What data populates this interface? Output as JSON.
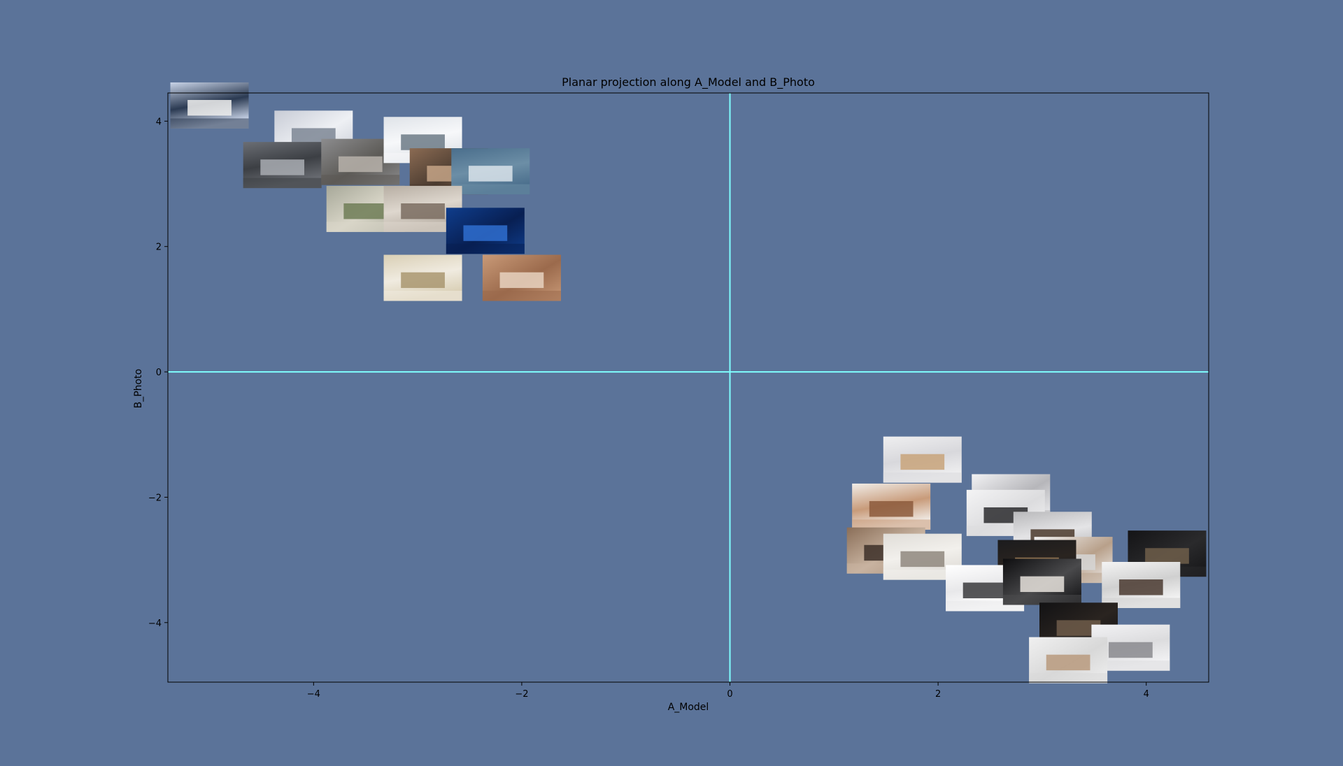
{
  "chart_data": {
    "type": "scatter",
    "title": "Planar projection along A_Model and B_Photo",
    "xlabel": "A_Model",
    "ylabel": "B_Photo",
    "xlim": [
      -5.4,
      4.6
    ],
    "ylim": [
      -4.95,
      4.45
    ],
    "xticks": [
      -4,
      -2,
      0,
      2,
      4
    ],
    "yticks": [
      -4,
      -2,
      0,
      2,
      4
    ],
    "tick_labels_x": [
      "−4",
      "−2",
      "0",
      "2",
      "4"
    ],
    "tick_labels_y": [
      "−4",
      "−2",
      "0",
      "2",
      "4"
    ],
    "grid": false,
    "reference_lines": {
      "x": 0,
      "y": 0,
      "color": "#7fffff"
    },
    "colors": {
      "background": "#5b7399",
      "axes_face": "#5b7399",
      "frame": "#000000"
    },
    "points": [
      {
        "x": -5.0,
        "y": 4.25,
        "thumb": [
          "#c9d4e8",
          "#f0f0ee",
          "#2b3a52"
        ]
      },
      {
        "x": -4.0,
        "y": 3.8,
        "thumb": [
          "#c8ccd6",
          "#7d8694",
          "#eef0f4"
        ]
      },
      {
        "x": -4.3,
        "y": 3.3,
        "thumb": [
          "#6b6e74",
          "#a9adb3",
          "#3c3f44"
        ]
      },
      {
        "x": -3.55,
        "y": 3.35,
        "thumb": [
          "#8c8c8e",
          "#b7b2aa",
          "#5c5a56"
        ]
      },
      {
        "x": -2.95,
        "y": 3.7,
        "thumb": [
          "#dfe3e8",
          "#6c7a86",
          "#f7f8fa"
        ]
      },
      {
        "x": -2.7,
        "y": 3.2,
        "thumb": [
          "#8b6b53",
          "#c6a587",
          "#4a3b30"
        ]
      },
      {
        "x": -2.3,
        "y": 3.2,
        "thumb": [
          "#4a6e8c",
          "#d9e3ea",
          "#6c8ea6"
        ]
      },
      {
        "x": -3.5,
        "y": 2.6,
        "thumb": [
          "#a7a899",
          "#6f7d56",
          "#d9d6c8"
        ]
      },
      {
        "x": -2.95,
        "y": 2.6,
        "thumb": [
          "#b7aea3",
          "#7a6c60",
          "#ded7ce"
        ]
      },
      {
        "x": -2.35,
        "y": 2.25,
        "thumb": [
          "#0f3d8c",
          "#2f6fd0",
          "#081f52"
        ]
      },
      {
        "x": -2.95,
        "y": 1.5,
        "thumb": [
          "#d9cfb5",
          "#a99770",
          "#f0ebe0"
        ]
      },
      {
        "x": -2.0,
        "y": 1.5,
        "thumb": [
          "#c99a78",
          "#e8d2c0",
          "#9b6a4c"
        ]
      },
      {
        "x": 1.85,
        "y": -1.4,
        "thumb": [
          "#efeff0",
          "#c8a37a",
          "#d8d8dc"
        ]
      },
      {
        "x": 2.7,
        "y": -2.0,
        "thumb": [
          "#f2f2f4",
          "#e0e0e2",
          "#b6b6ba"
        ]
      },
      {
        "x": 1.55,
        "y": -2.15,
        "thumb": [
          "#f1ede8",
          "#8c5a3c",
          "#c89b7a"
        ]
      },
      {
        "x": 2.65,
        "y": -2.25,
        "thumb": [
          "#f4f4f5",
          "#2b2b2e",
          "#dcdcde"
        ]
      },
      {
        "x": 3.1,
        "y": -2.6,
        "thumb": [
          "#b9b9bb",
          "#4b3a2c",
          "#e4e4e6"
        ]
      },
      {
        "x": 1.5,
        "y": -2.85,
        "thumb": [
          "#8a6e58",
          "#3c2f28",
          "#c8b3a0"
        ]
      },
      {
        "x": 1.85,
        "y": -2.95,
        "thumb": [
          "#e0ddd8",
          "#8f877e",
          "#f2f0ec"
        ]
      },
      {
        "x": 3.3,
        "y": -3.0,
        "thumb": [
          "#f2f2f2",
          "#d6d6d6",
          "#b8a08a"
        ]
      },
      {
        "x": 2.95,
        "y": -3.05,
        "thumb": [
          "#1b1b1d",
          "#9a7a56",
          "#2a2420"
        ]
      },
      {
        "x": 4.2,
        "y": -2.9,
        "thumb": [
          "#141416",
          "#6e5e4a",
          "#2a2a2c"
        ]
      },
      {
        "x": 2.45,
        "y": -3.45,
        "thumb": [
          "#ffffff",
          "#3a3a3c",
          "#e8e8ea"
        ]
      },
      {
        "x": 3.0,
        "y": -3.35,
        "thumb": [
          "#0e0e10",
          "#e6e2dc",
          "#4a4a4c"
        ]
      },
      {
        "x": 3.95,
        "y": -3.4,
        "thumb": [
          "#f4f4f4",
          "#4a3a30",
          "#d0d0d0"
        ]
      },
      {
        "x": 3.35,
        "y": -4.05,
        "thumb": [
          "#121214",
          "#6e5c4a",
          "#2a2420"
        ]
      },
      {
        "x": 3.85,
        "y": -4.4,
        "thumb": [
          "#f2f2f4",
          "#8a8a8e",
          "#dcdcde"
        ]
      },
      {
        "x": 3.25,
        "y": -4.6,
        "thumb": [
          "#f0f0f0",
          "#b89a7e",
          "#d8d8d8"
        ]
      }
    ]
  }
}
